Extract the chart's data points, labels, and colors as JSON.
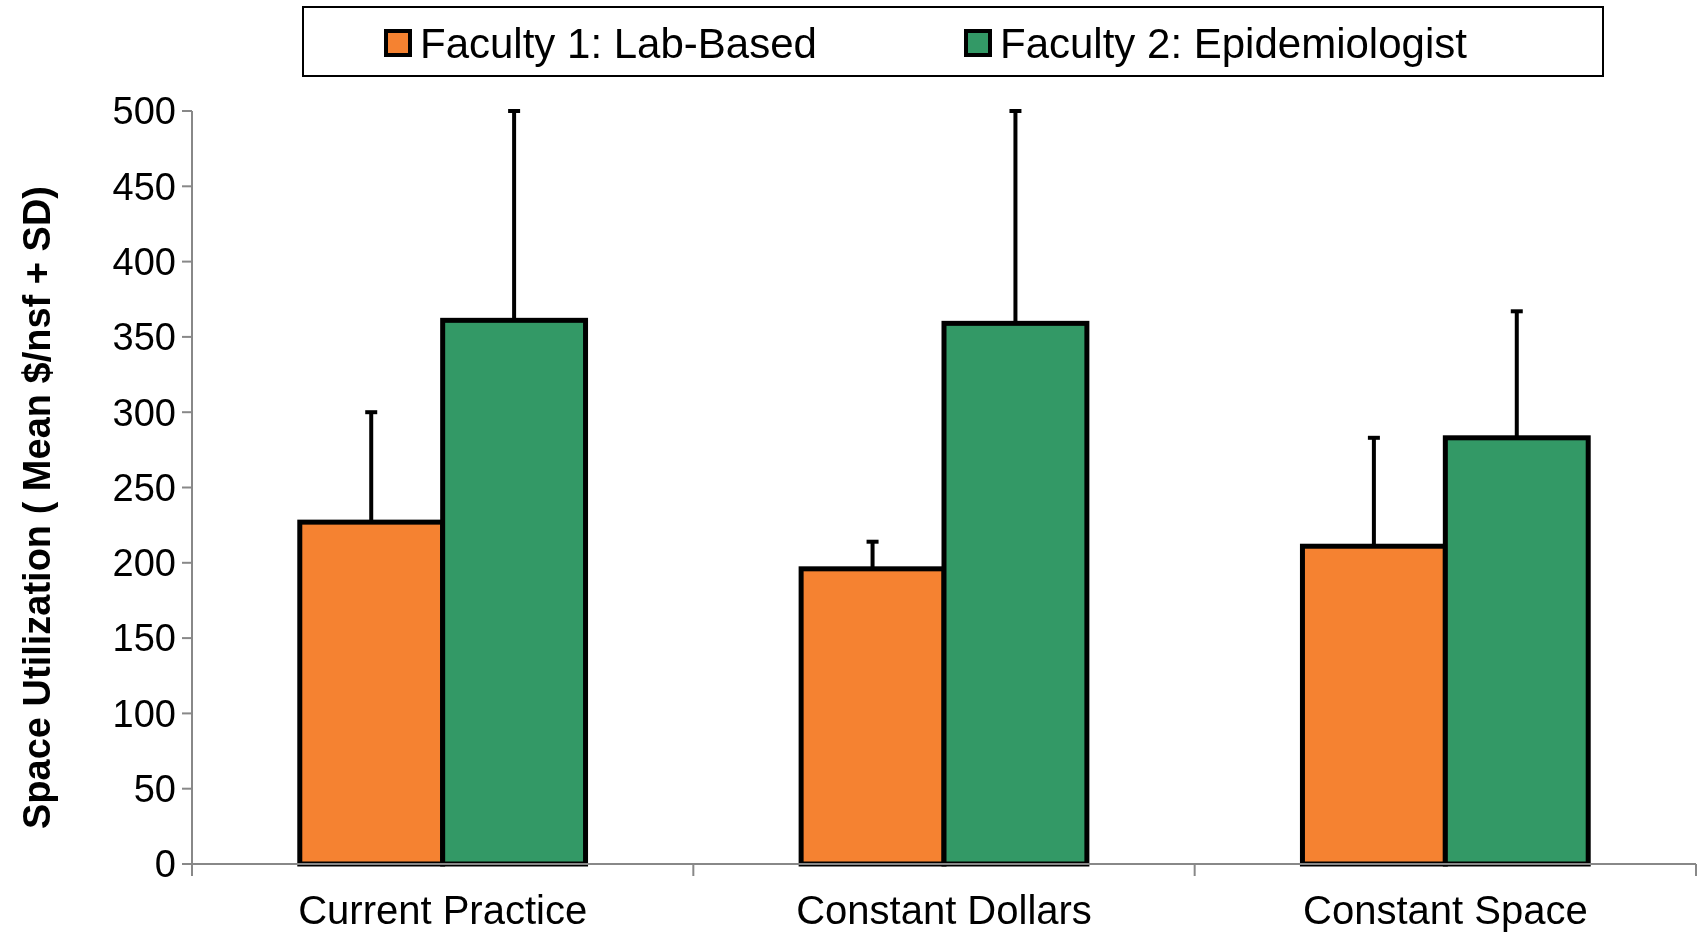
{
  "chart_data": {
    "type": "bar",
    "ylabel": "Space Utilization ( Mean $/nsf + SD)",
    "categories": [
      "Current Practice",
      "Constant Dollars",
      "Constant Space"
    ],
    "series": [
      {
        "name": "Faculty 1: Lab-Based",
        "color": "#f58231",
        "values": [
          227,
          196,
          211
        ],
        "errors": [
          [
            227,
            300
          ],
          [
            196,
            214
          ],
          [
            211,
            283
          ]
        ]
      },
      {
        "name": "Faculty 2: Epidemiologist",
        "color": "#339966",
        "values": [
          361,
          359,
          283
        ],
        "errors": [
          [
            361,
            500
          ],
          [
            359,
            500
          ],
          [
            283,
            367
          ]
        ]
      }
    ],
    "ylim": [
      0,
      500
    ],
    "yticks": [
      0,
      50,
      100,
      150,
      200,
      250,
      300,
      350,
      400,
      450,
      500
    ],
    "grid": false,
    "legend": "top"
  }
}
